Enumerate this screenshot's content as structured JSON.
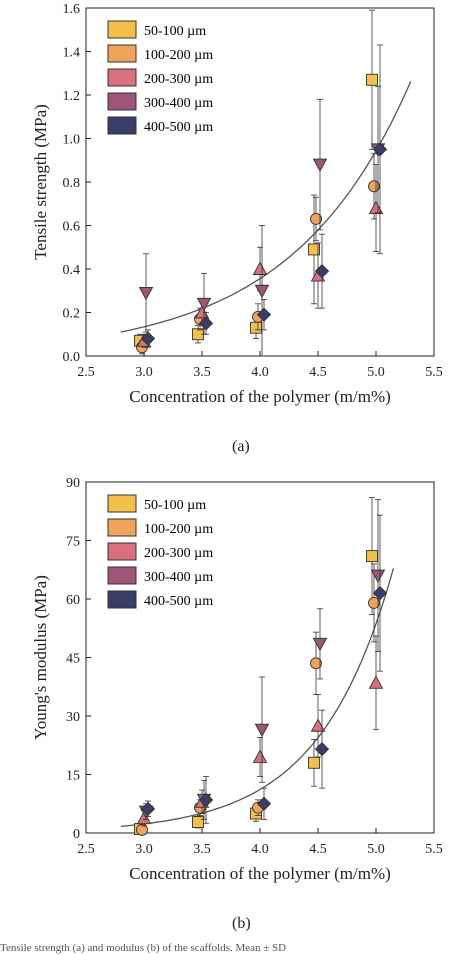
{
  "chart_data": [
    {
      "type": "scatter",
      "panel": "(a)",
      "xlabel": "Concentration of the polymer (m/m%)",
      "ylabel": "Tensile strength (MPa)",
      "xlim": [
        2.5,
        5.5
      ],
      "ylim": [
        0.0,
        1.6
      ],
      "xticks": [
        "2.5",
        "3.0",
        "3.5",
        "4.0",
        "4.5",
        "5.0",
        "5.5"
      ],
      "yticks": [
        "0.0",
        "0.2",
        "0.4",
        "0.6",
        "0.8",
        "1.0",
        "1.2",
        "1.4",
        "1.6"
      ],
      "legend_position": "top-left",
      "grid": false,
      "x": [
        3.0,
        3.5,
        4.0,
        4.5,
        5.0
      ],
      "series": [
        {
          "name": "50-100 µm",
          "marker": "square",
          "color": "#f3c04a",
          "values": [
            0.07,
            0.1,
            0.13,
            0.49,
            1.27
          ],
          "err": [
            0.03,
            0.04,
            0.05,
            0.25,
            0.32
          ]
        },
        {
          "name": "100-200 µm",
          "marker": "circle",
          "color": "#f0a35a",
          "values": [
            0.04,
            0.17,
            0.18,
            0.63,
            0.78
          ],
          "err": [
            0.03,
            0.05,
            0.06,
            0.1,
            0.15
          ]
        },
        {
          "name": "200-300 µm",
          "marker": "triangle-up",
          "color": "#d9707f",
          "values": [
            0.07,
            0.2,
            0.4,
            0.37,
            0.68
          ],
          "err": [
            0.03,
            0.05,
            0.1,
            0.15,
            0.2
          ]
        },
        {
          "name": "300-400 µm",
          "marker": "triangle-down",
          "color": "#9e5577",
          "values": [
            0.29,
            0.24,
            0.3,
            0.88,
            0.95
          ],
          "err": [
            0.18,
            0.14,
            0.3,
            0.3,
            0.29
          ]
        },
        {
          "name": "400-500 µm",
          "marker": "diamond",
          "color": "#3a3d6a",
          "values": [
            0.08,
            0.15,
            0.19,
            0.39,
            0.95
          ],
          "err": [
            0.04,
            0.05,
            0.07,
            0.17,
            0.48
          ]
        }
      ],
      "fit": {
        "x0": 2.8,
        "x1": 5.3,
        "a": 0.0072,
        "b": 0.975
      }
    },
    {
      "type": "scatter",
      "panel": "(b)",
      "xlabel": "Concentration of the polymer (m/m%)",
      "ylabel": "Young's modulus (MPa)",
      "xlim": [
        2.5,
        5.5
      ],
      "ylim": [
        0,
        90
      ],
      "xticks": [
        "2.5",
        "3.0",
        "3.5",
        "4.0",
        "4.5",
        "5.0",
        "5.5"
      ],
      "yticks": [
        "0",
        "15",
        "30",
        "45",
        "60",
        "75",
        "90"
      ],
      "legend_position": "top-left",
      "grid": false,
      "x": [
        3.0,
        3.5,
        4.0,
        4.5,
        5.0
      ],
      "series": [
        {
          "name": "50-100 µm",
          "marker": "square",
          "color": "#f3c04a",
          "values": [
            1.0,
            2.8,
            5.0,
            18.0,
            71.0
          ],
          "err": [
            1.0,
            1.5,
            2.0,
            6.0,
            15.0
          ]
        },
        {
          "name": "100-200 µm",
          "marker": "circle",
          "color": "#f0a35a",
          "values": [
            0.8,
            6.5,
            6.5,
            43.5,
            59.0
          ],
          "err": [
            1.0,
            2.0,
            2.0,
            8.0,
            10.0
          ]
        },
        {
          "name": "200-300 µm",
          "marker": "triangle-up",
          "color": "#d9707f",
          "values": [
            3.8,
            8.0,
            19.5,
            27.5,
            38.5
          ],
          "err": [
            2.0,
            3.0,
            5.0,
            8.0,
            12.0
          ]
        },
        {
          "name": "300-400 µm",
          "marker": "triangle-down",
          "color": "#9e5577",
          "values": [
            5.5,
            8.5,
            26.5,
            48.5,
            66.0
          ],
          "err": [
            2.0,
            5.0,
            13.5,
            9.0,
            19.5
          ]
        },
        {
          "name": "400-500 µm",
          "marker": "diamond",
          "color": "#3a3d6a",
          "values": [
            6.2,
            8.5,
            7.5,
            21.5,
            61.5
          ],
          "err": [
            2.0,
            6.0,
            4.0,
            10.0,
            20.0
          ]
        }
      ],
      "fit": {
        "x0": 2.8,
        "x1": 5.15,
        "a": 0.0209,
        "b": 1.57
      }
    }
  ],
  "labels": {
    "panel_a": "(a)",
    "panel_b": "(b)"
  },
  "caption": "Tensile strength (a) and modulus (b) of the scaffolds. Mean ± SD"
}
